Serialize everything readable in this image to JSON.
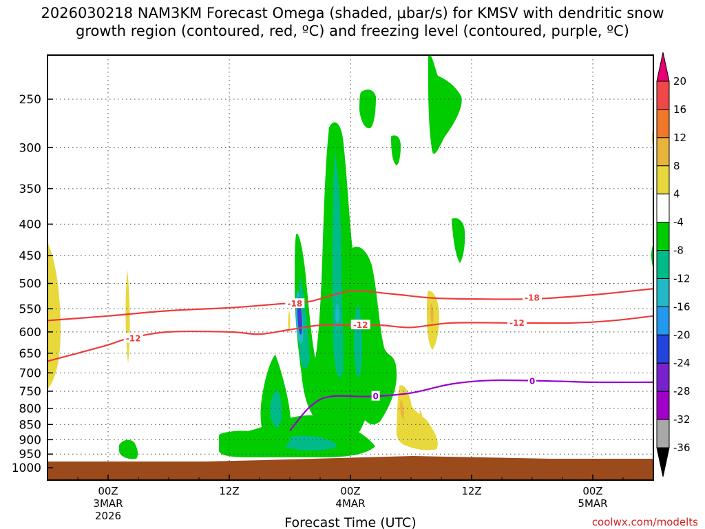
{
  "chart_data": {
    "type": "heatmap",
    "title_line1": "2026030218 NAM3KM Forecast Omega (shaded, μbar/s) for KMSV with dendritic snow",
    "title_line2": "growth region (contoured, red, ºC) and freezing level (contoured, purple, ºC)",
    "xlabel": "Forecast Time (UTC)",
    "credit": "coolwx.com/modelts",
    "y_axis": {
      "scale": "pressure (log-like, inverted)",
      "ticks": [
        250,
        300,
        350,
        400,
        450,
        500,
        550,
        600,
        650,
        700,
        750,
        800,
        850,
        900,
        950,
        1000
      ],
      "range": [
        1000,
        200
      ]
    },
    "x_axis": {
      "range_hours": [
        -6,
        54
      ],
      "ticks": [
        {
          "h": 0,
          "lines": [
            "00Z",
            "3MAR",
            "2026"
          ]
        },
        {
          "h": 12,
          "lines": [
            "12Z"
          ]
        },
        {
          "h": 24,
          "lines": [
            "00Z",
            "4MAR"
          ]
        },
        {
          "h": 36,
          "lines": [
            "12Z"
          ]
        },
        {
          "h": 48,
          "lines": [
            "00Z",
            "5MAR"
          ]
        }
      ]
    },
    "colorbar": {
      "labels": [
        "20",
        "16",
        "12",
        "8",
        "4",
        "-4",
        "-8",
        "-12",
        "-16",
        "-20",
        "-24",
        "-28",
        "-32",
        "-36"
      ],
      "colors": [
        "#e60073",
        "#f04848",
        "#f07828",
        "#e8b43c",
        "#e8d83c",
        "#ffffff",
        "#00cc00",
        "#00bb88",
        "#22b8c8",
        "#2299ee",
        "#2244dd",
        "#7722cc",
        "#a000c8",
        "#a8a8a8",
        "#000000"
      ]
    },
    "ground_color": "#9b4a1c",
    "contours": {
      "dgz_color": "#ee3b3b",
      "freezing_color": "#9900cc",
      "dgz": [
        {
          "level": -18,
          "points": [
            [
              -6,
              575
            ],
            [
              0,
              565
            ],
            [
              6,
              554
            ],
            [
              12,
              548
            ],
            [
              17,
              540
            ],
            [
              20,
              535
            ],
            [
              24,
              515
            ],
            [
              28,
              520
            ],
            [
              32,
              528
            ],
            [
              36,
              530
            ],
            [
              42,
              530
            ],
            [
              48,
              522
            ],
            [
              54,
              510
            ]
          ]
        },
        {
          "level": -12,
          "points": [
            [
              -6,
              670
            ],
            [
              -3,
              650
            ],
            [
              0,
              630
            ],
            [
              2,
              615
            ],
            [
              6,
              600
            ],
            [
              12,
              600
            ],
            [
              15,
              605
            ],
            [
              18,
              595
            ],
            [
              21,
              585
            ],
            [
              24,
              585
            ],
            [
              27,
              585
            ],
            [
              30,
              590
            ],
            [
              34,
              580
            ],
            [
              40,
              580
            ],
            [
              46,
              580
            ],
            [
              50,
              575
            ],
            [
              54,
              565
            ]
          ]
        }
      ],
      "freezing": [
        {
          "level": 0,
          "points": [
            [
              18,
              870
            ],
            [
              20,
              795
            ],
            [
              22,
              765
            ],
            [
              26,
              765
            ],
            [
              30,
              755
            ],
            [
              34,
              730
            ],
            [
              38,
              720
            ],
            [
              44,
              722
            ],
            [
              48,
              725
            ],
            [
              54,
              725
            ]
          ]
        }
      ],
      "labels": [
        {
          "text": "-18",
          "h": 18.5,
          "p": 540,
          "kind": "dgz"
        },
        {
          "text": "-18",
          "h": 42,
          "p": 528,
          "kind": "dgz"
        },
        {
          "text": "-12",
          "h": 2.5,
          "p": 615,
          "kind": "dgz"
        },
        {
          "text": "-12",
          "h": 25,
          "p": 585,
          "kind": "dgz"
        },
        {
          "text": "-12",
          "h": 40.5,
          "p": 580,
          "kind": "dgz"
        },
        {
          "text": "0",
          "h": 26.5,
          "p": 765,
          "kind": "freezing"
        },
        {
          "text": "0",
          "h": 42,
          "p": 722,
          "kind": "freezing"
        }
      ]
    }
  }
}
